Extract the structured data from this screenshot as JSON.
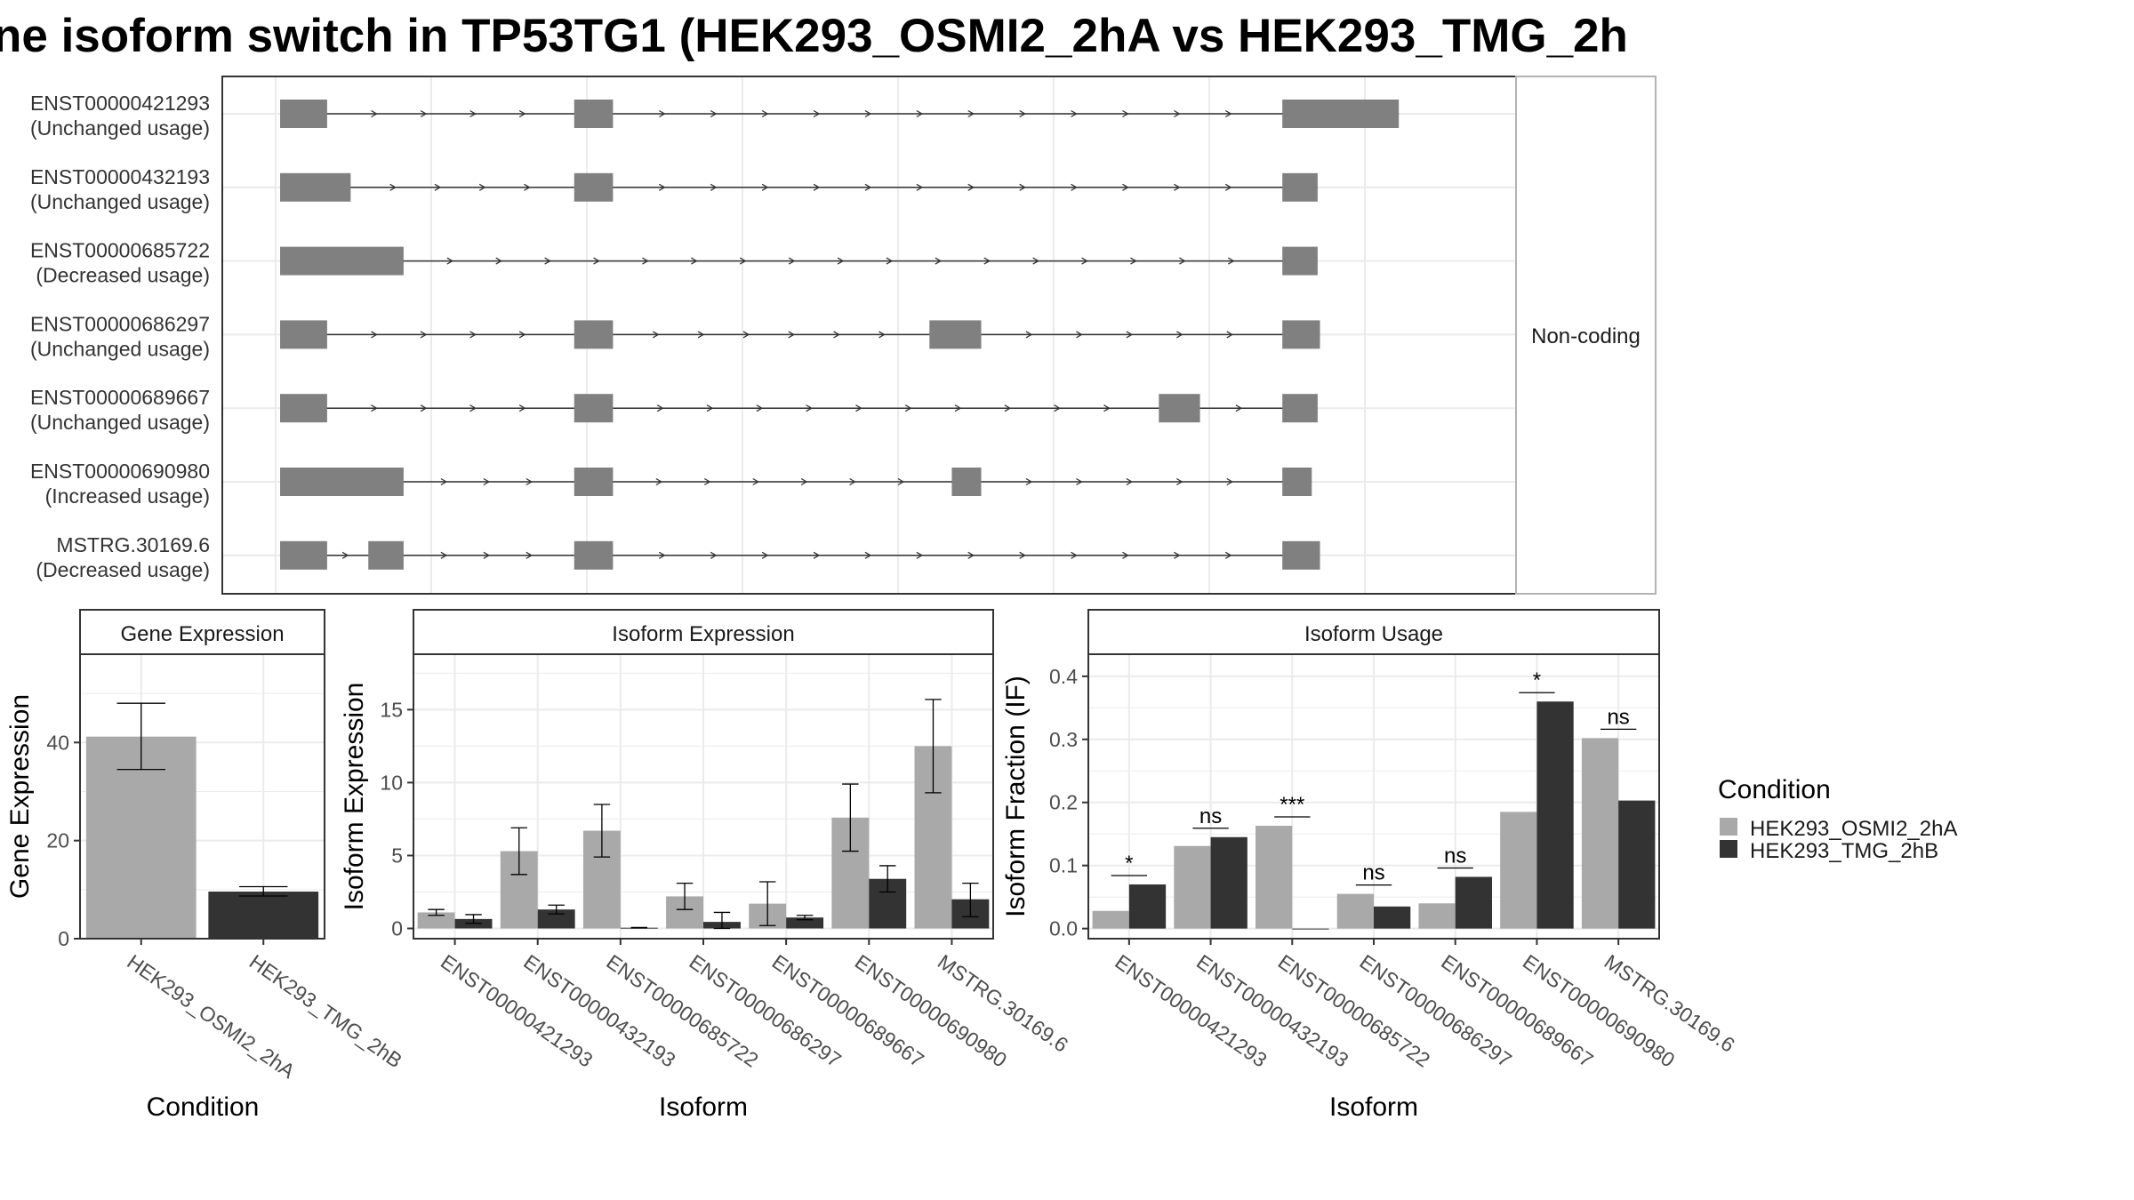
{
  "title": "ne isoform switch in TP53TG1 (HEK293_OSMI2_2hA vs HEK293_TMG_2h",
  "colors": {
    "exon": "#808080",
    "condition_a": "#a9a9a9",
    "condition_b": "#333333",
    "grid": "#ebebeb",
    "panel_border": "#333333",
    "strip_fill": "#ffffff"
  },
  "transcript_panel": {
    "strip_label": "Non-coding",
    "transcripts": [
      {
        "id": "ENST00000421293",
        "usage": "(Unchanged usage)",
        "exons": [
          [
            0,
            0.04
          ],
          [
            0.25,
            0.283
          ],
          [
            0.852,
            0.951
          ]
        ]
      },
      {
        "id": "ENST00000432193",
        "usage": "(Unchanged usage)",
        "exons": [
          [
            0,
            0.06
          ],
          [
            0.25,
            0.283
          ],
          [
            0.852,
            0.882
          ]
        ]
      },
      {
        "id": "ENST00000685722",
        "usage": "(Decreased usage)",
        "exons": [
          [
            0,
            0.105
          ],
          [
            0.852,
            0.882
          ]
        ]
      },
      {
        "id": "ENST00000686297",
        "usage": "(Unchanged usage)",
        "exons": [
          [
            0,
            0.04
          ],
          [
            0.25,
            0.283
          ],
          [
            0.552,
            0.596
          ],
          [
            0.852,
            0.884
          ]
        ]
      },
      {
        "id": "ENST00000689667",
        "usage": "(Unchanged usage)",
        "exons": [
          [
            0,
            0.04
          ],
          [
            0.25,
            0.283
          ],
          [
            0.747,
            0.782
          ],
          [
            0.852,
            0.882
          ]
        ]
      },
      {
        "id": "ENST00000690980",
        "usage": "(Increased usage)",
        "exons": [
          [
            0,
            0.105
          ],
          [
            0.25,
            0.283
          ],
          [
            0.571,
            0.596
          ],
          [
            0.852,
            0.877
          ]
        ]
      },
      {
        "id": "MSTRG.30169.6",
        "usage": "(Decreased usage)",
        "exons": [
          [
            0,
            0.04
          ],
          [
            0.075,
            0.105
          ],
          [
            0.25,
            0.283
          ],
          [
            0.852,
            0.884
          ]
        ]
      }
    ]
  },
  "legend": {
    "title": "Condition",
    "entries": [
      "HEK293_OSMI2_2hA",
      "HEK293_TMG_2hB"
    ]
  },
  "chart_data": [
    {
      "type": "bar",
      "title": "Gene Expression",
      "xlabel": "Condition",
      "ylabel": "Gene Expression",
      "categories": [
        "HEK293_OSMI2_2hA",
        "HEK293_TMG_2hB"
      ],
      "values": [
        41.2,
        9.6
      ],
      "errors": [
        [
          34.5,
          48
        ],
        [
          8.7,
          10.6
        ]
      ],
      "ylim": [
        0,
        58
      ],
      "yticks": [
        0,
        20,
        40
      ]
    },
    {
      "type": "bar",
      "title": "Isoform Expression",
      "xlabel": "Isoform",
      "ylabel": "Isoform Expression",
      "categories": [
        "ENST00000421293",
        "ENST00000432193",
        "ENST00000685722",
        "ENST00000686297",
        "ENST00000689667",
        "ENST00000690980",
        "MSTRG.30169.6"
      ],
      "series": [
        {
          "name": "HEK293_OSMI2_2hA",
          "values": [
            1.1,
            5.3,
            6.7,
            2.2,
            1.7,
            7.6,
            12.5
          ],
          "errors": [
            [
              0.9,
              1.3
            ],
            [
              3.7,
              6.9
            ],
            [
              4.9,
              8.5
            ],
            [
              1.3,
              3.1
            ],
            [
              0.2,
              3.2
            ],
            [
              5.3,
              9.9
            ],
            [
              9.3,
              15.7
            ]
          ]
        },
        {
          "name": "HEK293_TMG_2hB",
          "values": [
            0.65,
            1.3,
            0.05,
            0.45,
            0.75,
            3.4,
            2.0
          ],
          "errors": [
            [
              0.35,
              0.95
            ],
            [
              1.0,
              1.6
            ],
            [
              0.03,
              0.07
            ],
            [
              0,
              1.1
            ],
            [
              0.6,
              0.9
            ],
            [
              2.5,
              4.3
            ],
            [
              0.8,
              3.1
            ]
          ]
        }
      ],
      "ylim": [
        -0.7,
        18.8
      ],
      "yticks": [
        0,
        5,
        10,
        15
      ]
    },
    {
      "type": "bar",
      "title": "Isoform Usage",
      "xlabel": "Isoform",
      "ylabel": "Isoform Fraction (IF)",
      "categories": [
        "ENST00000421293",
        "ENST00000432193",
        "ENST00000685722",
        "ENST00000686297",
        "ENST00000689667",
        "ENST00000690980",
        "MSTRG.30169.6"
      ],
      "series": [
        {
          "name": "HEK293_OSMI2_2hA",
          "values": [
            0.028,
            0.131,
            0.163,
            0.055,
            0.04,
            0.185,
            0.302
          ]
        },
        {
          "name": "HEK293_TMG_2hB",
          "values": [
            0.07,
            0.145,
            0,
            0.035,
            0.082,
            0.36,
            0.203
          ]
        }
      ],
      "significance": [
        "*",
        "ns",
        "***",
        "ns",
        "ns",
        "*",
        "ns"
      ],
      "ylim": [
        -0.016,
        0.435
      ],
      "yticks": [
        0.0,
        0.1,
        0.2,
        0.3,
        0.4
      ]
    }
  ]
}
